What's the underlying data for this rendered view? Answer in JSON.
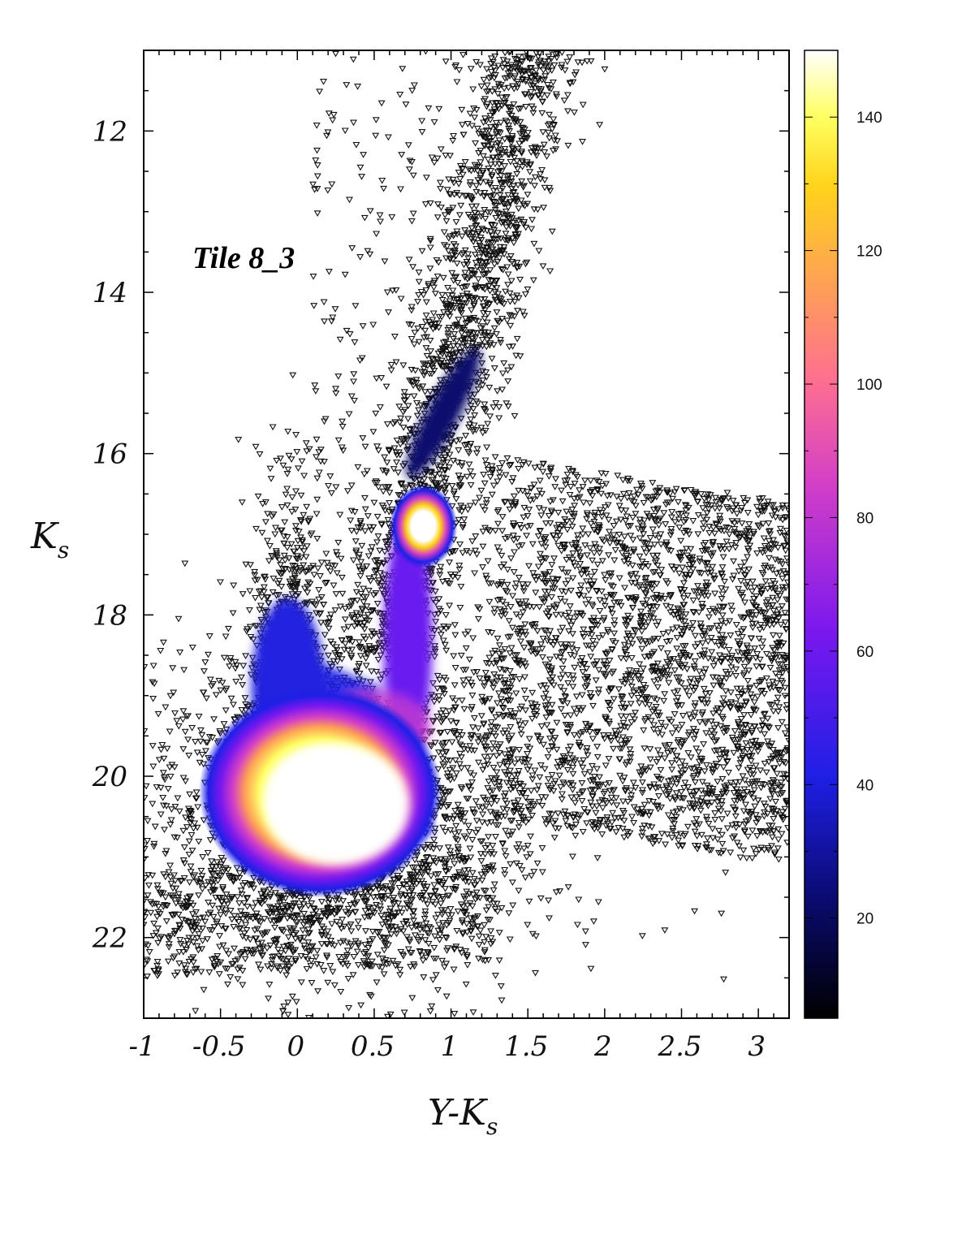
{
  "chart_data": {
    "type": "heatmap",
    "title": "",
    "annotation": "Tile 8_3",
    "xlabel": {
      "main": "Y-K",
      "sub": "s"
    },
    "ylabel": {
      "main": "K",
      "sub": "s"
    },
    "xlim": [
      -1.0,
      3.2
    ],
    "ylim": [
      23.0,
      11.0
    ],
    "y_inverted": true,
    "x_ticks": [
      -1,
      -0.5,
      0,
      0.5,
      1,
      1.5,
      2,
      2.5,
      3
    ],
    "x_tick_labels": [
      "-1",
      "-0.5",
      "0",
      "0.5",
      "1",
      "1.5",
      "2",
      "2.5",
      "3"
    ],
    "y_ticks": [
      12,
      14,
      16,
      18,
      20,
      22
    ],
    "y_tick_labels": [
      "12",
      "14",
      "16",
      "18",
      "20",
      "22"
    ],
    "colorbar": {
      "range": [
        5,
        150
      ],
      "ticks": [
        20,
        40,
        60,
        80,
        100,
        120,
        140
      ],
      "tick_labels": [
        "20",
        "40",
        "60",
        "80",
        "100",
        "120",
        "140"
      ],
      "colormap": [
        "#000000",
        "#0a0a6e",
        "#1f1fe6",
        "#7a18ee",
        "#d23ec8",
        "#ff6f8f",
        "#ffa155",
        "#ffd31a",
        "#ffff60",
        "#ffffff"
      ]
    },
    "point_marker": "down-triangle",
    "density_features": [
      {
        "name": "main sequence / turn-off",
        "x": 0.15,
        "y": 20.2,
        "peak": 150
      },
      {
        "name": "red clump",
        "x": 0.82,
        "y": 16.9,
        "peak": 150
      },
      {
        "name": "red giant branch",
        "x": [
          0.6,
          1.6
        ],
        "y": [
          18.6,
          11.0
        ]
      },
      {
        "name": "field scatter",
        "x": [
          1.2,
          3.2
        ],
        "y": [
          16.0,
          20.5
        ]
      }
    ]
  }
}
